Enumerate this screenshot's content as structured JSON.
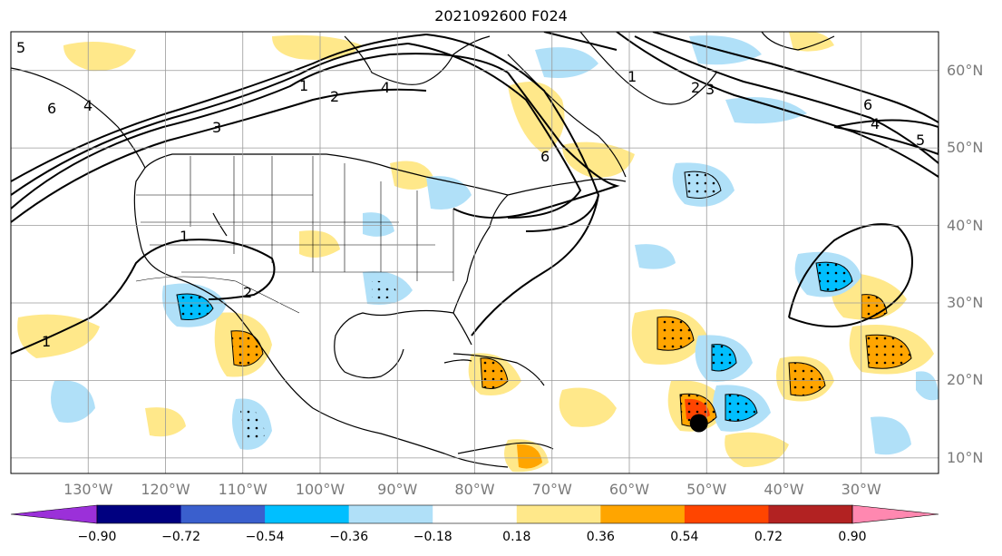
{
  "title": "2021092600 F024",
  "lat_labels": [
    {
      "lat": 60,
      "text": "60°N"
    },
    {
      "lat": 50,
      "text": "50°N"
    },
    {
      "lat": 40,
      "text": "40°N"
    },
    {
      "lat": 30,
      "text": "30°N"
    },
    {
      "lat": 20,
      "text": "20°N"
    },
    {
      "lat": 10,
      "text": "10°N"
    }
  ],
  "lon_labels": [
    {
      "lon": -130,
      "text": "130°W"
    },
    {
      "lon": -120,
      "text": "120°W"
    },
    {
      "lon": -110,
      "text": "110°W"
    },
    {
      "lon": -100,
      "text": "100°W"
    },
    {
      "lon": -90,
      "text": "90°W"
    },
    {
      "lon": -80,
      "text": "80°W"
    },
    {
      "lon": -70,
      "text": "70°W"
    },
    {
      "lon": -60,
      "text": "60°W"
    },
    {
      "lon": -50,
      "text": "50°W"
    },
    {
      "lon": -40,
      "text": "40°W"
    },
    {
      "lon": -30,
      "text": "30°W"
    }
  ],
  "map_extent": {
    "lon_min": -140,
    "lon_max": -20,
    "lat_min": 8,
    "lat_max": 65
  },
  "colorbar": {
    "ticks": [
      "−0.90",
      "−0.72",
      "−0.54",
      "−0.36",
      "−0.18",
      "0.18",
      "0.36",
      "0.54",
      "0.72",
      "0.90"
    ],
    "colors": [
      "#9b30d9",
      "#000080",
      "#3a5fcd",
      "#00bfff",
      "#b0e0f8",
      "#ffffff",
      "#ffe88a",
      "#ffa500",
      "#ff4500",
      "#b22222",
      "#ff88b0"
    ]
  },
  "contour_labels": [
    "1",
    "2",
    "3",
    "4",
    "5",
    "6"
  ],
  "storm_marker": {
    "lon": -51,
    "lat": 14.5,
    "color": "#000000"
  }
}
